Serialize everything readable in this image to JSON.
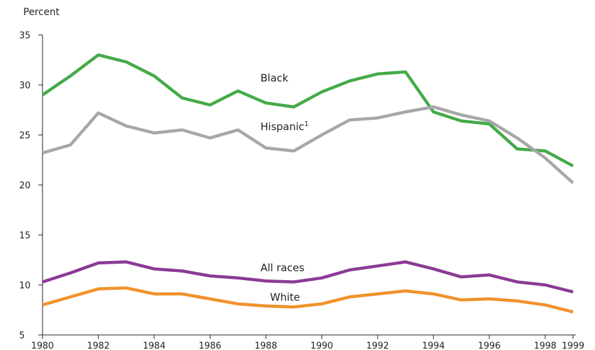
{
  "chart_data": {
    "type": "line",
    "ylabel": "Percent",
    "ylim": [
      5,
      35
    ],
    "yticks": [
      5,
      10,
      15,
      20,
      25,
      30,
      35
    ],
    "xlim": [
      1980,
      1999
    ],
    "xticks": [
      1980,
      1982,
      1984,
      1986,
      1988,
      1990,
      1992,
      1994,
      1996,
      1998,
      1999
    ],
    "grid": false,
    "legend": "inline labels",
    "x": [
      1980,
      1981,
      1982,
      1983,
      1984,
      1985,
      1986,
      1987,
      1988,
      1989,
      1990,
      1991,
      1992,
      1993,
      1994,
      1995,
      1996,
      1997,
      1998,
      1999
    ],
    "series": [
      {
        "name": "Black",
        "color": "#44aa48",
        "values": [
          29.0,
          30.9,
          33.0,
          32.3,
          30.9,
          28.7,
          28.0,
          29.4,
          28.2,
          27.8,
          29.3,
          30.4,
          31.1,
          31.3,
          27.3,
          26.4,
          26.1,
          23.6,
          23.4,
          21.9
        ]
      },
      {
        "name": "Hispanic",
        "name_superscript": "1",
        "color": "#a7a7a7",
        "values": [
          23.2,
          24.0,
          27.2,
          25.9,
          25.2,
          25.5,
          24.7,
          25.5,
          23.7,
          23.4,
          25.0,
          26.5,
          26.7,
          27.3,
          27.8,
          27.0,
          26.4,
          24.7,
          22.7,
          20.2
        ]
      },
      {
        "name": "All races",
        "color": "#8b3a96",
        "values": [
          10.3,
          11.2,
          12.2,
          12.3,
          11.6,
          11.4,
          10.9,
          10.7,
          10.4,
          10.3,
          10.7,
          11.5,
          11.9,
          12.3,
          11.6,
          10.8,
          11.0,
          10.3,
          10.0,
          9.3
        ]
      },
      {
        "name": "White",
        "color": "#f0922a",
        "values": [
          8.0,
          8.8,
          9.6,
          9.7,
          9.1,
          9.1,
          8.6,
          8.1,
          7.9,
          7.8,
          8.1,
          8.8,
          9.1,
          9.4,
          9.1,
          8.5,
          8.6,
          8.4,
          8.0,
          7.3
        ]
      }
    ]
  }
}
